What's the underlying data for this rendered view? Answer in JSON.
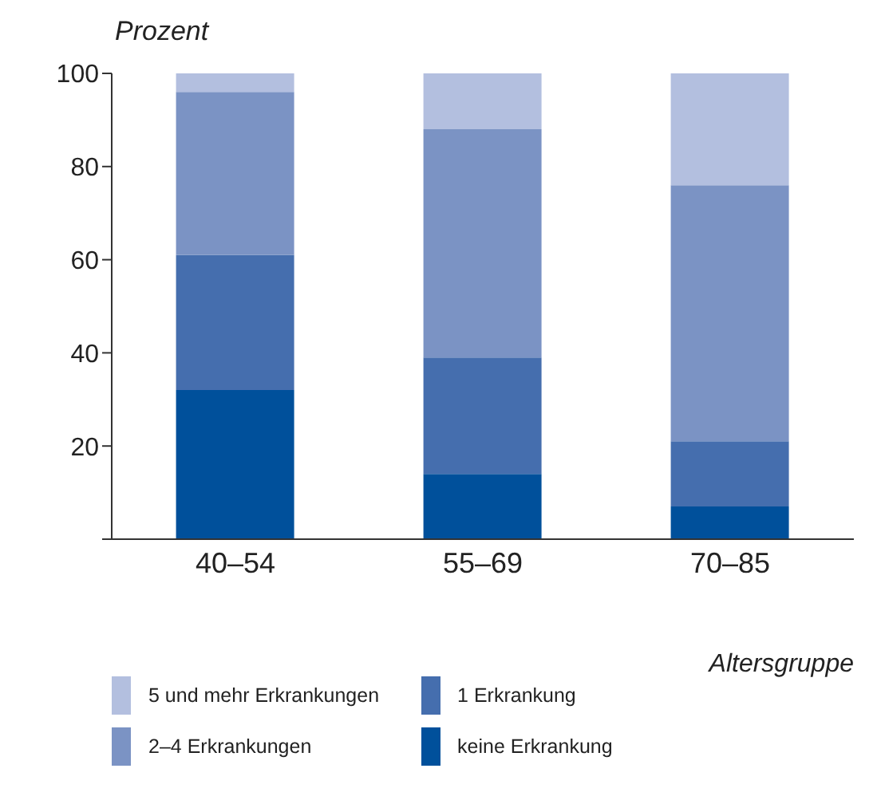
{
  "chart_data": {
    "type": "bar",
    "stacked": true,
    "ylabel": "Prozent",
    "xlabel": "Altersgruppe",
    "categories": [
      "40–54",
      "55–69",
      "70–85"
    ],
    "series": [
      {
        "name": "keine Erkrankung",
        "color": "#00509b",
        "values": [
          32,
          14,
          7
        ]
      },
      {
        "name": "1 Erkrankung",
        "color": "#456eae",
        "values": [
          29,
          25,
          14
        ]
      },
      {
        "name": "2–4 Erkrankungen",
        "color": "#7b93c4",
        "values": [
          35,
          49,
          55
        ]
      },
      {
        "name": "5 und mehr Erkrankungen",
        "color": "#b3bfdf",
        "values": [
          4,
          12,
          24
        ]
      }
    ],
    "ylim": [
      0,
      100
    ],
    "yticks": [
      {
        "value": 0,
        "label": null
      },
      20,
      40,
      60,
      80,
      100
    ],
    "grid": false,
    "legend": "bottom"
  }
}
